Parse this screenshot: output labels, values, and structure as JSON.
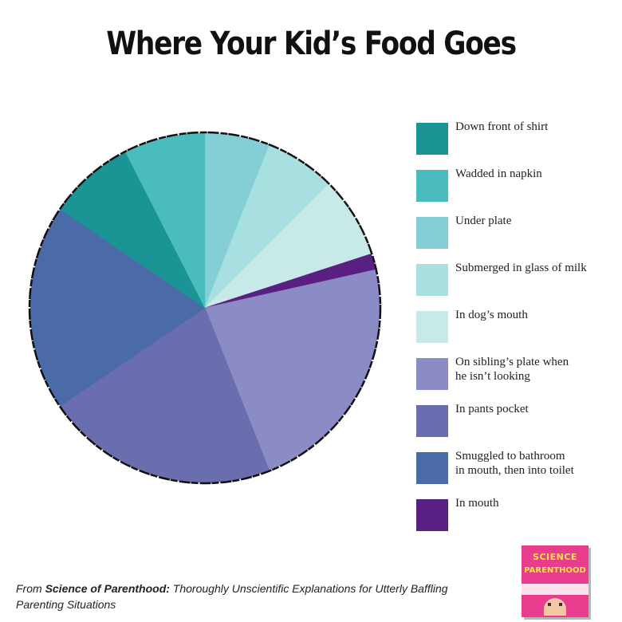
{
  "chart_data": {
    "type": "pie",
    "title": "Where Your Kid’s Food Goes",
    "legend_position": "right",
    "slices": [
      {
        "label": "Down front of shirt",
        "value": 8.0,
        "color": "#1b9495"
      },
      {
        "label": "Wadded in napkin",
        "value": 7.5,
        "color": "#4bbcbe"
      },
      {
        "label": "Under plate",
        "value": 6.0,
        "color": "#84cfd6"
      },
      {
        "label": "Submerged in glass of milk",
        "value": 6.5,
        "color": "#a8dfe1"
      },
      {
        "label": "In dog’s mouth",
        "value": 7.5,
        "color": "#c7e9e8"
      },
      {
        "label": "On sibling’s plate when he isn’t looking",
        "value": 22.5,
        "color": "#8b8bc5"
      },
      {
        "label": "In pants pocket",
        "value": 21.5,
        "color": "#6a6eae"
      },
      {
        "label": "Smuggled to bathroom in mouth, then into toilet",
        "value": 19.0,
        "color": "#4a6aa8"
      },
      {
        "label": "In mouth",
        "value": 1.5,
        "color": "#5a1f82"
      }
    ],
    "slice_order": [
      2,
      3,
      4,
      8,
      5,
      6,
      7,
      0,
      1
    ],
    "legend_lines": [
      [
        "Down front of shirt"
      ],
      [
        "Wadded in napkin"
      ],
      [
        "Under plate"
      ],
      [
        "Submerged in glass of milk"
      ],
      [
        "In dog’s mouth"
      ],
      [
        "On sibling’s plate when",
        "he isn’t looking"
      ],
      [
        "In pants pocket"
      ],
      [
        "Smuggled to bathroom",
        "in mouth, then into toilet"
      ],
      [
        "In mouth"
      ]
    ]
  },
  "footer": {
    "prefix": "From ",
    "book_title": "Science of Parenthood:",
    "rest": " Thoroughly Unscientific Explanations for Utterly Baffling Parenting Situations"
  },
  "book_cover": {
    "title_line1": "SCIENCE",
    "title_line2": "PARENTHOOD"
  }
}
